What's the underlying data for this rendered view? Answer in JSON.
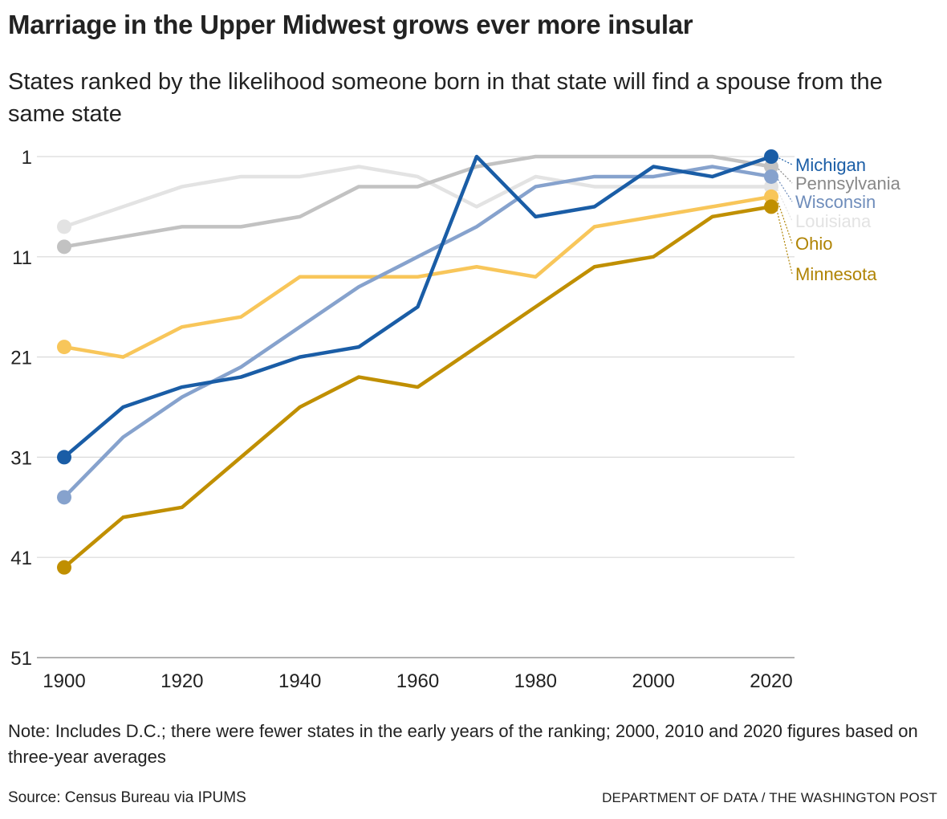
{
  "title": "Marriage in the Upper Midwest grows ever more insular",
  "subtitle": "States ranked by the likelihood someone born in that state will find a spouse from the same state",
  "note": "Note: Includes D.C.; there were fewer states in the early years of the ranking; 2000, 2010 and 2020 figures based on three-year averages",
  "source": "Source: Census Bureau via IPUMS",
  "credit": "DEPARTMENT OF DATA / THE WASHINGTON POST",
  "chart_data": {
    "type": "line",
    "x": [
      1900,
      1910,
      1920,
      1930,
      1940,
      1950,
      1960,
      1970,
      1980,
      1990,
      2000,
      2010,
      2020
    ],
    "xticks": [
      1900,
      1920,
      1940,
      1960,
      1980,
      2000,
      2020
    ],
    "yticks": [
      1,
      11,
      21,
      31,
      41,
      51
    ],
    "ylim": [
      1,
      51
    ],
    "y_reversed": true,
    "grid": true,
    "legend": "direct labels at right end",
    "series": [
      {
        "name": "Louisiana",
        "color": "#e3e3e3",
        "values": [
          8,
          6,
          4,
          3,
          3,
          2,
          3,
          6,
          3,
          4,
          4,
          4,
          4
        ]
      },
      {
        "name": "Pennsylvania",
        "color": "#c2c2c2",
        "label_color": "#888888",
        "values": [
          10,
          9,
          8,
          8,
          7,
          4,
          4,
          2,
          1,
          1,
          1,
          1,
          2
        ]
      },
      {
        "name": "Ohio",
        "color": "#f8c65a",
        "label_color": "#b08404",
        "values": [
          20,
          21,
          18,
          17,
          13,
          13,
          13,
          12,
          13,
          8,
          7,
          6,
          5
        ]
      },
      {
        "name": "Wisconsin",
        "color": "#86a2cd",
        "label_color": "#6f8dbb",
        "values": [
          35,
          29,
          25,
          22,
          18,
          14,
          11,
          8,
          4,
          3,
          3,
          2,
          3
        ]
      },
      {
        "name": "Michigan",
        "color": "#1a5da6",
        "values": [
          31,
          26,
          24,
          23,
          21,
          20,
          16,
          1,
          7,
          6,
          2,
          3,
          1
        ]
      },
      {
        "name": "Minnesota",
        "color": "#c08f00",
        "label_color": "#b08404",
        "values": [
          42,
          37,
          36,
          31,
          26,
          23,
          24,
          20,
          16,
          12,
          11,
          7,
          6
        ]
      }
    ]
  }
}
